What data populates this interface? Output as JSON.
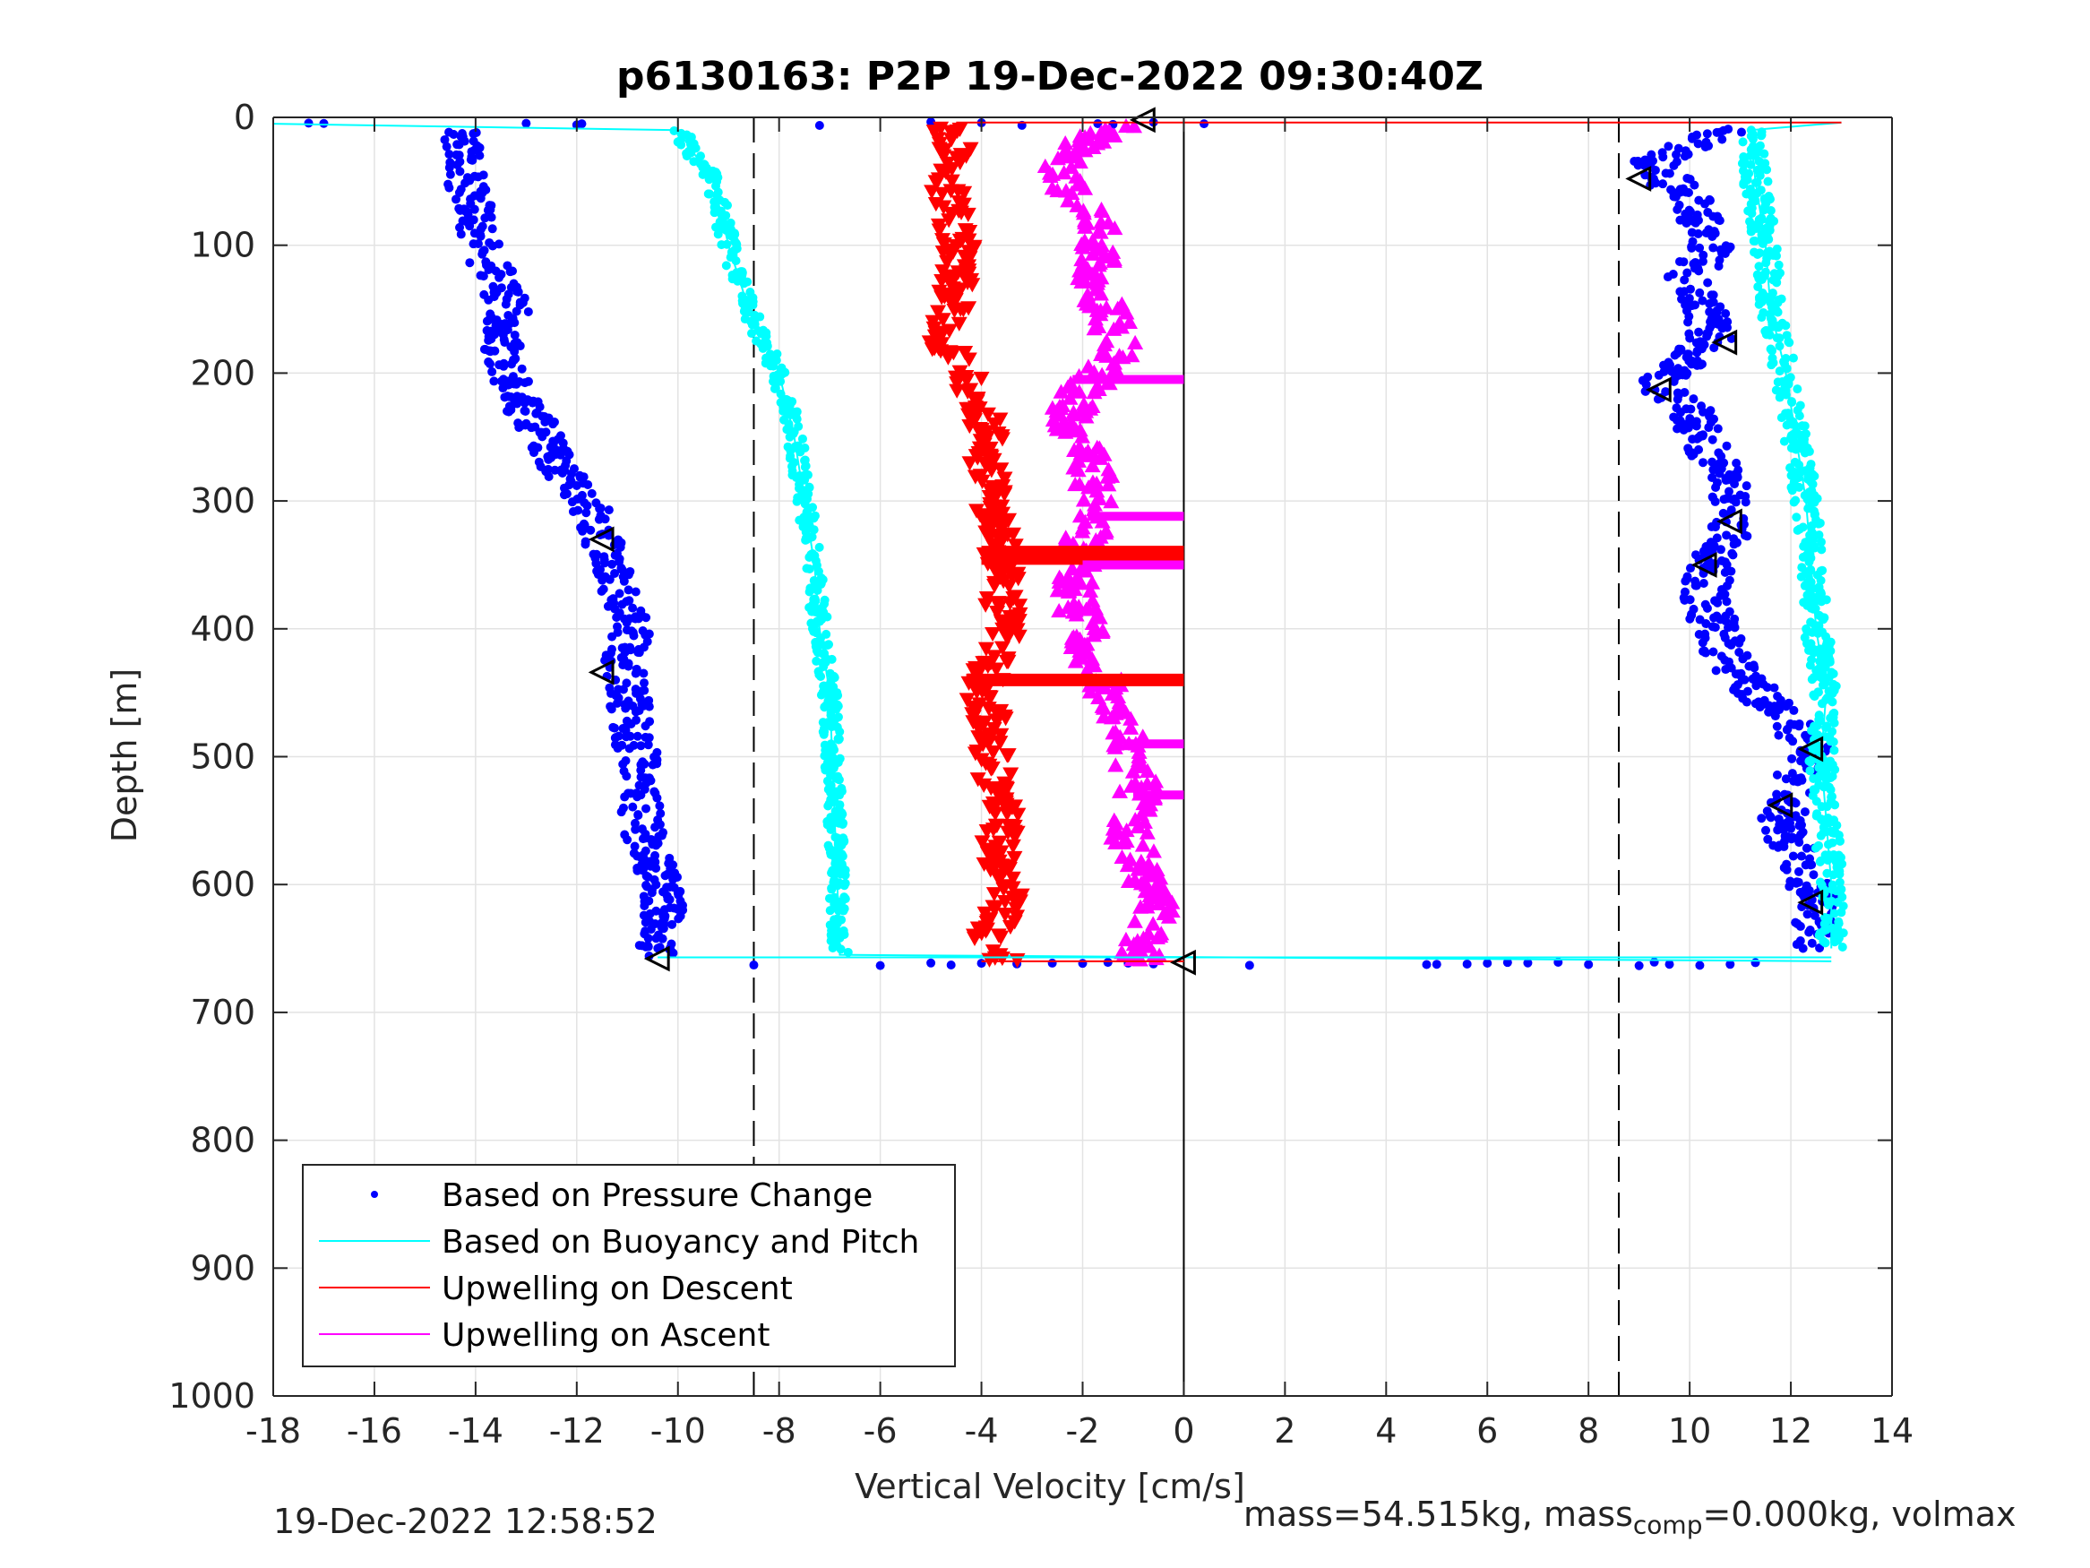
{
  "chart_data": {
    "type": "scatter",
    "title": "p6130163: P2P 19-Dec-2022 09:30:40Z",
    "xlabel": "Vertical Velocity [cm/s]",
    "ylabel": "Depth [m]",
    "xlim": [
      -18,
      14
    ],
    "ylim": [
      0,
      1000
    ],
    "y_reversed": true,
    "grid": true,
    "x_ticks": [
      -18,
      -16,
      -14,
      -12,
      -10,
      -8,
      -6,
      -4,
      -2,
      0,
      2,
      4,
      6,
      8,
      10,
      12,
      14
    ],
    "y_ticks": [
      0,
      100,
      200,
      300,
      400,
      500,
      600,
      700,
      800,
      900,
      1000
    ],
    "reference_lines": [
      {
        "x": -8.5,
        "style": "dashed"
      },
      {
        "x": 8.6,
        "style": "dashed"
      },
      {
        "x": 0,
        "style": "solid"
      }
    ],
    "legend_position": "bottom-left",
    "series": [
      {
        "name": "Based on Pressure Change",
        "color": "#0000ff",
        "marker": "dot",
        "descent": {
          "depth": [
            10,
            25,
            50,
            75,
            100,
            125,
            150,
            175,
            200,
            225,
            250,
            275,
            300,
            325,
            350,
            375,
            400,
            425,
            450,
            475,
            500,
            525,
            550,
            575,
            600,
            625,
            645,
            658
          ],
          "velocity": [
            -14.2,
            -14.3,
            -14.2,
            -14.0,
            -13.9,
            -13.6,
            -13.3,
            -13.5,
            -13.4,
            -13.1,
            -12.6,
            -12.3,
            -11.8,
            -11.5,
            -11.3,
            -11.1,
            -10.9,
            -11.1,
            -11.0,
            -10.9,
            -10.8,
            -10.8,
            -10.7,
            -10.6,
            -10.3,
            -10.3,
            -10.5,
            -10.4
          ]
        },
        "ascent": {
          "depth": [
            650,
            625,
            600,
            575,
            550,
            525,
            500,
            475,
            450,
            425,
            400,
            375,
            350,
            325,
            300,
            275,
            250,
            225,
            210,
            190,
            175,
            150,
            125,
            100,
            75,
            50,
            35,
            20,
            8
          ],
          "velocity": [
            12.3,
            12.5,
            12.4,
            12.1,
            11.8,
            12.0,
            12.4,
            12.0,
            11.3,
            10.8,
            10.5,
            10.3,
            10.4,
            10.8,
            10.8,
            10.6,
            10.3,
            9.9,
            9.4,
            9.9,
            10.4,
            10.3,
            10.0,
            10.4,
            10.2,
            9.6,
            9.3,
            10.1,
            10.8
          ]
        },
        "surface_outliers": [
          {
            "depth": 5,
            "velocity": [
              -17.3,
              -17.0,
              -13.0,
              -12.0,
              -11.9,
              -7.2,
              -5.0,
              -4.0,
              -3.2,
              -1.7,
              -1.4,
              -0.6,
              0.4
            ]
          },
          {
            "depth": 662,
            "velocity": [
              -8.5,
              -6.0,
              -5.0,
              -4.6,
              -4.0,
              -3.3,
              -2.6,
              -2.0,
              -1.5,
              -1.1,
              -0.6,
              1.3,
              4.8,
              5.0,
              5.6,
              6.0,
              6.4,
              6.8,
              7.4,
              8.0,
              9.0,
              9.3,
              9.6,
              10.2,
              10.8,
              11.3
            ]
          }
        ]
      },
      {
        "name": "Based on Buoyancy and Pitch",
        "color": "#00ffff",
        "marker": "line",
        "descent": {
          "depth": [
            5,
            10,
            50,
            100,
            150,
            200,
            250,
            300,
            350,
            400,
            450,
            500,
            550,
            600,
            655,
            660
          ],
          "velocity": [
            -18.0,
            -10.0,
            -9.3,
            -9.0,
            -8.6,
            -8.0,
            -7.7,
            -7.5,
            -7.3,
            -7.2,
            -7.0,
            -6.95,
            -6.9,
            -6.85,
            -6.8,
            12.8
          ]
        },
        "ascent": {
          "depth": [
            650,
            600,
            550,
            500,
            450,
            400,
            350,
            300,
            250,
            200,
            150,
            100,
            50,
            10,
            4
          ],
          "velocity": [
            12.8,
            12.8,
            12.7,
            12.6,
            12.7,
            12.5,
            12.4,
            12.3,
            12.1,
            11.9,
            11.6,
            11.5,
            11.3,
            11.2,
            13.0
          ]
        }
      },
      {
        "name": "Upwelling on Descent",
        "color": "#ff0000",
        "marker": "triangle-down",
        "depth": [
          5,
          20,
          50,
          75,
          100,
          125,
          150,
          175,
          200,
          225,
          250,
          275,
          300,
          325,
          350,
          375,
          400,
          425,
          450,
          475,
          500,
          525,
          550,
          575,
          600,
          625,
          645,
          660
        ],
        "velocity": [
          -4.8,
          -4.5,
          -4.7,
          -4.6,
          -4.4,
          -4.5,
          -4.6,
          -4.7,
          -4.4,
          -4.0,
          -3.9,
          -3.9,
          -3.8,
          -3.7,
          -3.6,
          -3.6,
          -3.5,
          -3.8,
          -4.0,
          -3.8,
          -3.8,
          -3.7,
          -3.6,
          -3.7,
          -3.5,
          -3.6,
          -4.0,
          -3.5
        ],
        "horizontal_streaks": [
          {
            "depth": 340,
            "from": -4.0,
            "to": 0
          },
          {
            "depth": 345,
            "from": -4.0,
            "to": 0
          },
          {
            "depth": 440,
            "from": -4.3,
            "to": 0
          },
          {
            "depth": 4,
            "from": -4.5,
            "to": 13.0
          }
        ]
      },
      {
        "name": "Upwelling on Ascent",
        "color": "#ff00ff",
        "marker": "triangle-up",
        "depth": [
          660,
          640,
          620,
          600,
          580,
          560,
          540,
          520,
          500,
          480,
          460,
          440,
          420,
          400,
          380,
          360,
          340,
          320,
          300,
          280,
          260,
          240,
          220,
          200,
          180,
          160,
          140,
          120,
          100,
          80,
          60,
          40,
          20,
          5
        ],
        "velocity": [
          -0.9,
          -0.8,
          -0.6,
          -0.7,
          -0.9,
          -1.1,
          -1.0,
          -0.9,
          -1.0,
          -1.2,
          -1.4,
          -1.6,
          -1.8,
          -2.0,
          -2.1,
          -2.1,
          -2.0,
          -1.9,
          -1.7,
          -1.8,
          -2.0,
          -2.2,
          -2.2,
          -1.6,
          -1.3,
          -1.4,
          -1.6,
          -1.8,
          -1.7,
          -1.7,
          -2.3,
          -2.4,
          -2.0,
          -1.2
        ],
        "horizontal_streaks": [
          {
            "depth": 205,
            "from": -2.2,
            "to": 0
          },
          {
            "depth": 312,
            "from": -1.9,
            "to": 0
          },
          {
            "depth": 350,
            "from": -2.0,
            "to": 0
          },
          {
            "depth": 490,
            "from": -1.2,
            "to": 0
          },
          {
            "depth": 530,
            "from": -1.0,
            "to": 0
          }
        ]
      },
      {
        "name": "",
        "color": "#000000",
        "marker": "triangle-left-open",
        "points": [
          {
            "depth": 2,
            "velocity": -0.8
          },
          {
            "depth": 48,
            "velocity": 9.0
          },
          {
            "depth": 176,
            "velocity": 10.7
          },
          {
            "depth": 213,
            "velocity": 9.4
          },
          {
            "depth": 316,
            "velocity": 10.8
          },
          {
            "depth": 330,
            "velocity": -11.5
          },
          {
            "depth": 350,
            "velocity": 10.3
          },
          {
            "depth": 434,
            "velocity": -11.5
          },
          {
            "depth": 494,
            "velocity": 12.4
          },
          {
            "depth": 538,
            "velocity": 11.8
          },
          {
            "depth": 614,
            "velocity": 12.4
          },
          {
            "depth": 658,
            "velocity": -10.4
          },
          {
            "depth": 661,
            "velocity": 0
          }
        ]
      }
    ]
  },
  "footer": {
    "timestamp": "19-Dec-2022 12:58:52",
    "mass_text_pre": "mass=54.515kg, mass",
    "mass_text_sub": "comp",
    "mass_text_post": "=0.000kg, volmax"
  }
}
